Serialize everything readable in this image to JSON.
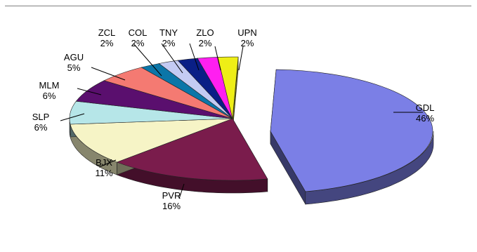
{
  "chart_data": {
    "type": "pie",
    "style": "3d-exploded",
    "legend": "none",
    "slices": [
      {
        "label": "GDL",
        "value": 46,
        "value_label": "46%",
        "color": "#7b7fe6"
      },
      {
        "label": "PVR",
        "value": 16,
        "value_label": "16%",
        "color": "#7a1c4c"
      },
      {
        "label": "BJX",
        "value": 11,
        "value_label": "11%",
        "color": "#f6f4c6"
      },
      {
        "label": "SLP",
        "value": 6,
        "value_label": "6%",
        "color": "#b6e6e8"
      },
      {
        "label": "MLM",
        "value": 6,
        "value_label": "6%",
        "color": "#5a0f6e"
      },
      {
        "label": "AGU",
        "value": 5,
        "value_label": "5%",
        "color": "#f47a72"
      },
      {
        "label": "ZCL",
        "value": 2,
        "value_label": "2%",
        "color": "#0b76a8"
      },
      {
        "label": "COL",
        "value": 2,
        "value_label": "2%",
        "color": "#c4cbf3"
      },
      {
        "label": "TNY",
        "value": 2,
        "value_label": "2%",
        "color": "#0a1f86"
      },
      {
        "label": "ZLO",
        "value": 2,
        "value_label": "2%",
        "color": "#ff1ff0"
      },
      {
        "label": "UPN",
        "value": 2,
        "value_label": "2%",
        "color": "#eeee16"
      }
    ]
  }
}
